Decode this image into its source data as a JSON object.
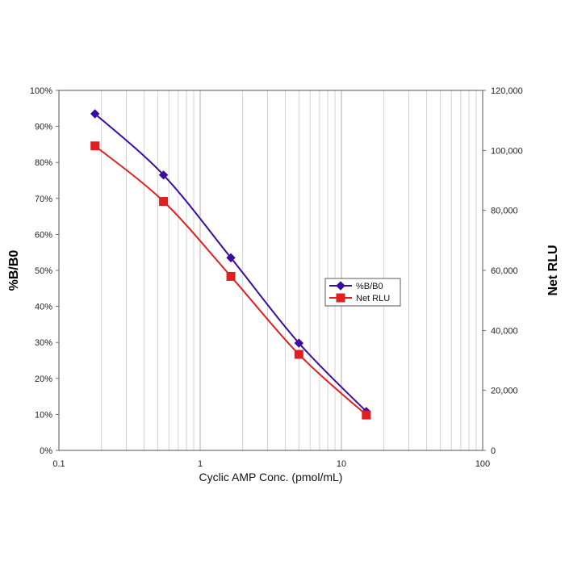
{
  "chart_data": {
    "type": "line",
    "xlabel": "Cyclic AMP Conc. (pmol/mL)",
    "ylabel": "%B/B0",
    "y2label": "Net RLU",
    "x_scale": "log",
    "xlim": [
      0.1,
      100
    ],
    "x_ticks": [
      "0.1",
      "1",
      "10",
      "100"
    ],
    "ylim": [
      0,
      100
    ],
    "y_ticks": [
      "0%",
      "10%",
      "20%",
      "30%",
      "40%",
      "50%",
      "60%",
      "70%",
      "80%",
      "90%",
      "100%"
    ],
    "y2lim": [
      0,
      120000
    ],
    "y2_ticks": [
      "0",
      "20,000",
      "40,000",
      "60,000",
      "80,000",
      "100,000",
      "120,000"
    ],
    "grid": true,
    "legend_position": "right",
    "x": [
      0.18,
      0.55,
      1.65,
      5.0,
      15.0
    ],
    "series": [
      {
        "name": "%B/B0",
        "axis": "left",
        "marker": "diamond",
        "color": "#3a0ca3",
        "values": [
          93.5,
          76.5,
          53.5,
          29.8,
          10.8
        ]
      },
      {
        "name": "Net RLU",
        "axis": "right",
        "marker": "square",
        "color": "#e02020",
        "values": [
          101500,
          83000,
          58000,
          32000,
          11800
        ]
      }
    ]
  }
}
